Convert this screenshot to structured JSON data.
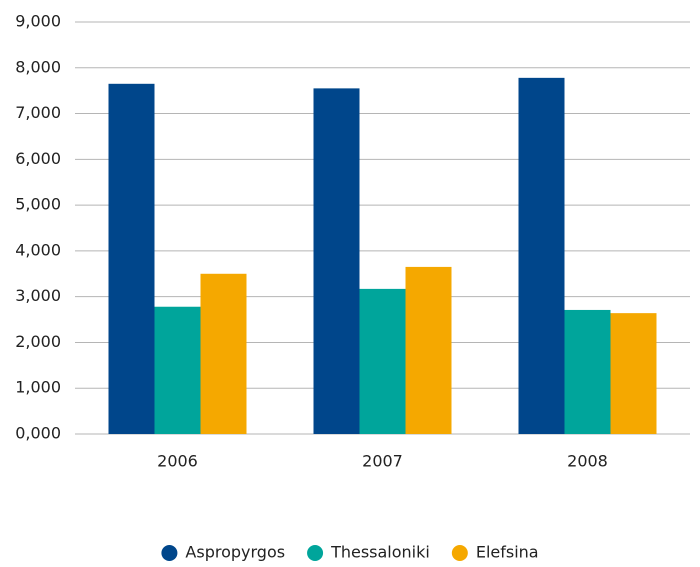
{
  "chart_data": {
    "type": "bar",
    "categories": [
      "2006",
      "2007",
      "2008"
    ],
    "series": [
      {
        "name": "Aspropyrgos",
        "color": "#00468b",
        "values": [
          7650,
          7550,
          7780
        ]
      },
      {
        "name": "Thessaloniki",
        "color": "#00a59b",
        "values": [
          2780,
          3170,
          2710
        ]
      },
      {
        "name": "Elefsina",
        "color": "#f5a800",
        "values": [
          3500,
          3650,
          2640
        ]
      }
    ],
    "ylim": [
      0,
      9000
    ],
    "yticks": [
      {
        "value": 0,
        "label": "0,000"
      },
      {
        "value": 1000,
        "label": "1,000"
      },
      {
        "value": 2000,
        "label": "2,000"
      },
      {
        "value": 3000,
        "label": "3,000"
      },
      {
        "value": 4000,
        "label": "4,000"
      },
      {
        "value": 5000,
        "label": "5,000"
      },
      {
        "value": 6000,
        "label": "6,000"
      },
      {
        "value": 7000,
        "label": "7,000"
      },
      {
        "value": 8000,
        "label": "8,000"
      },
      {
        "value": 9000,
        "label": "9,000"
      }
    ],
    "grid": true,
    "legend": "bottom"
  }
}
